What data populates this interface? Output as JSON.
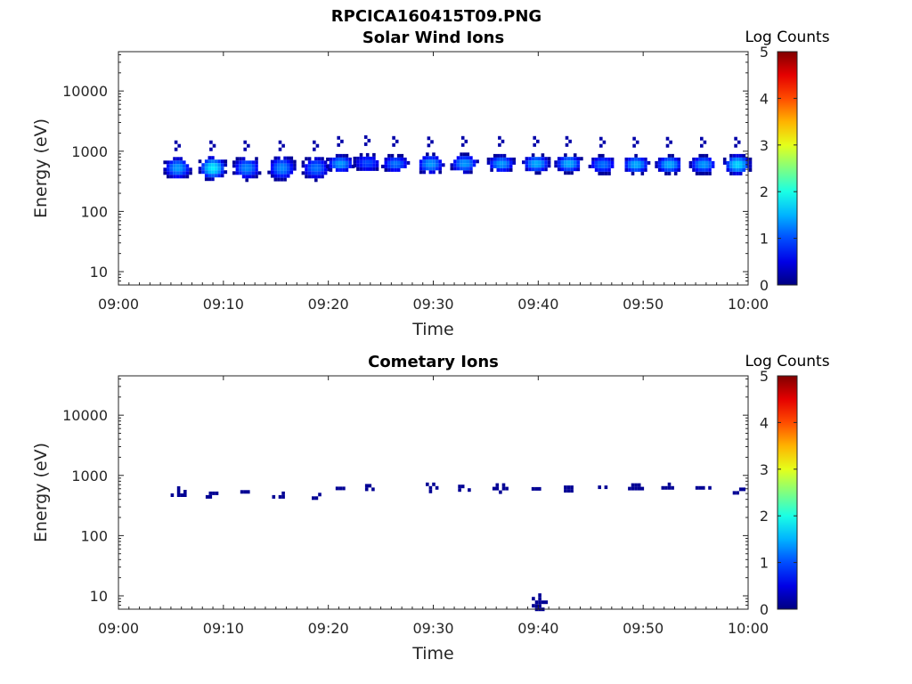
{
  "figure_title": "RPCICA160415T09.PNG",
  "chart_data": [
    {
      "type": "heatmap",
      "title": "Solar Wind Ions",
      "xlabel": "Time",
      "ylabel": "Energy (eV)",
      "x_tick_labels": [
        "09:00",
        "09:10",
        "09:20",
        "09:30",
        "09:40",
        "09:50",
        "10:00"
      ],
      "x_range": [
        "09:00",
        "10:00"
      ],
      "y_tick_labels": [
        "10",
        "100",
        "1000",
        "10000"
      ],
      "y_scale": "log",
      "y_range": [
        6,
        45000
      ],
      "colorbar": {
        "label": "Log Counts",
        "range": [
          0,
          5
        ],
        "tick_labels": [
          "0",
          "1",
          "2",
          "3",
          "4",
          "5"
        ],
        "colormap": "jet"
      },
      "clusters": [
        {
          "time": "09:05:30",
          "energy_center": 560,
          "energy_low": 340,
          "energy_high": 800,
          "peak_log_counts": 1.4,
          "sparse": false
        },
        {
          "time": "09:08:50",
          "energy_center": 560,
          "energy_low": 330,
          "energy_high": 830,
          "peak_log_counts": 1.8,
          "sparse": false
        },
        {
          "time": "09:12:05",
          "energy_center": 560,
          "energy_low": 330,
          "energy_high": 800,
          "peak_log_counts": 1.3,
          "sparse": false
        },
        {
          "time": "09:15:25",
          "energy_center": 560,
          "energy_low": 320,
          "energy_high": 820,
          "peak_log_counts": 1.3,
          "sparse": false
        },
        {
          "time": "09:18:40",
          "energy_center": 560,
          "energy_low": 330,
          "energy_high": 800,
          "peak_log_counts": 1.2,
          "sparse": false
        },
        {
          "time": "09:21:00",
          "energy_center": 660,
          "energy_low": 450,
          "energy_high": 900,
          "peak_log_counts": 1.4,
          "sparse": false
        },
        {
          "time": "09:23:35",
          "energy_center": 680,
          "energy_low": 470,
          "energy_high": 930,
          "peak_log_counts": 1.0,
          "sparse": false
        },
        {
          "time": "09:26:15",
          "energy_center": 660,
          "energy_low": 460,
          "energy_high": 900,
          "peak_log_counts": 1.2,
          "sparse": false
        },
        {
          "time": "09:29:35",
          "energy_center": 650,
          "energy_low": 440,
          "energy_high": 950,
          "peak_log_counts": 1.4,
          "sparse": false
        },
        {
          "time": "09:32:50",
          "energy_center": 660,
          "energy_low": 450,
          "energy_high": 950,
          "peak_log_counts": 1.4,
          "sparse": false
        },
        {
          "time": "09:36:20",
          "energy_center": 660,
          "energy_low": 450,
          "energy_high": 900,
          "peak_log_counts": 1.4,
          "sparse": false
        },
        {
          "time": "09:39:40",
          "energy_center": 660,
          "energy_low": 450,
          "energy_high": 920,
          "peak_log_counts": 1.5,
          "sparse": false
        },
        {
          "time": "09:42:45",
          "energy_center": 660,
          "energy_low": 450,
          "energy_high": 920,
          "peak_log_counts": 1.5,
          "sparse": false
        },
        {
          "time": "09:46:00",
          "energy_center": 640,
          "energy_low": 440,
          "energy_high": 900,
          "peak_log_counts": 1.2,
          "sparse": false
        },
        {
          "time": "09:49:10",
          "energy_center": 640,
          "energy_low": 440,
          "energy_high": 900,
          "peak_log_counts": 1.5,
          "sparse": false
        },
        {
          "time": "09:52:20",
          "energy_center": 640,
          "energy_low": 440,
          "energy_high": 900,
          "peak_log_counts": 1.5,
          "sparse": false
        },
        {
          "time": "09:55:35",
          "energy_center": 640,
          "energy_low": 440,
          "energy_high": 900,
          "peak_log_counts": 1.4,
          "sparse": false
        },
        {
          "time": "09:58:50",
          "energy_center": 640,
          "energy_low": 400,
          "energy_high": 900,
          "peak_log_counts": 1.7,
          "sparse": false
        }
      ]
    },
    {
      "type": "heatmap",
      "title": "Cometary Ions",
      "xlabel": "Time",
      "ylabel": "Energy (eV)",
      "x_tick_labels": [
        "09:00",
        "09:10",
        "09:20",
        "09:30",
        "09:40",
        "09:50",
        "10:00"
      ],
      "x_range": [
        "09:00",
        "10:00"
      ],
      "y_tick_labels": [
        "10",
        "100",
        "1000",
        "10000"
      ],
      "y_scale": "log",
      "y_range": [
        6,
        45000
      ],
      "colorbar": {
        "label": "Log Counts",
        "range": [
          0,
          5
        ],
        "tick_labels": [
          "0",
          "1",
          "2",
          "3",
          "4",
          "5"
        ],
        "colormap": "jet"
      },
      "clusters": [
        {
          "time": "09:05:35",
          "energy_center": 540,
          "energy_low": 440,
          "energy_high": 660,
          "peak_log_counts": 0.1,
          "sparse": true
        },
        {
          "time": "09:08:55",
          "energy_center": 480,
          "energy_low": 420,
          "energy_high": 540,
          "peak_log_counts": 0.1,
          "sparse": true
        },
        {
          "time": "09:11:55",
          "energy_center": 540,
          "energy_low": 510,
          "energy_high": 570,
          "peak_log_counts": 0.1,
          "sparse": true
        },
        {
          "time": "09:15:15",
          "energy_center": 480,
          "energy_low": 420,
          "energy_high": 540,
          "peak_log_counts": 0.1,
          "sparse": true
        },
        {
          "time": "09:18:25",
          "energy_center": 500,
          "energy_low": 430,
          "energy_high": 590,
          "peak_log_counts": 0.1,
          "sparse": true
        },
        {
          "time": "09:21:00",
          "energy_center": 610,
          "energy_low": 570,
          "energy_high": 650,
          "peak_log_counts": 0.1,
          "sparse": true
        },
        {
          "time": "09:23:30",
          "energy_center": 640,
          "energy_low": 560,
          "energy_high": 720,
          "peak_log_counts": 0.1,
          "sparse": true
        },
        {
          "time": "09:29:35",
          "energy_center": 660,
          "energy_low": 560,
          "energy_high": 760,
          "peak_log_counts": 0.1,
          "sparse": true
        },
        {
          "time": "09:32:40",
          "energy_center": 620,
          "energy_low": 530,
          "energy_high": 700,
          "peak_log_counts": 0.1,
          "sparse": true
        },
        {
          "time": "09:36:15",
          "energy_center": 650,
          "energy_low": 560,
          "energy_high": 740,
          "peak_log_counts": 0.1,
          "sparse": true
        },
        {
          "time": "09:39:40",
          "energy_center": 610,
          "energy_low": 580,
          "energy_high": 640,
          "peak_log_counts": 0.1,
          "sparse": true
        },
        {
          "time": "09:42:45",
          "energy_center": 620,
          "energy_low": 560,
          "energy_high": 680,
          "peak_log_counts": 0.1,
          "sparse": true
        },
        {
          "time": "09:46:00",
          "energy_center": 640,
          "energy_low": 600,
          "energy_high": 680,
          "peak_log_counts": 0.1,
          "sparse": true
        },
        {
          "time": "09:49:10",
          "energy_center": 670,
          "energy_low": 600,
          "energy_high": 740,
          "peak_log_counts": 0.1,
          "sparse": true
        },
        {
          "time": "09:52:20",
          "energy_center": 660,
          "energy_low": 580,
          "energy_high": 760,
          "peak_log_counts": 0.1,
          "sparse": true
        },
        {
          "time": "09:55:35",
          "energy_center": 660,
          "energy_low": 580,
          "energy_high": 760,
          "peak_log_counts": 0.1,
          "sparse": true
        },
        {
          "time": "09:58:50",
          "energy_center": 620,
          "energy_low": 520,
          "energy_high": 720,
          "peak_log_counts": 0.1,
          "sparse": true
        },
        {
          "time": "09:40:00",
          "energy_center": 8,
          "energy_low": 6,
          "energy_high": 11,
          "peak_log_counts": 0.1,
          "sparse": true
        }
      ]
    }
  ]
}
